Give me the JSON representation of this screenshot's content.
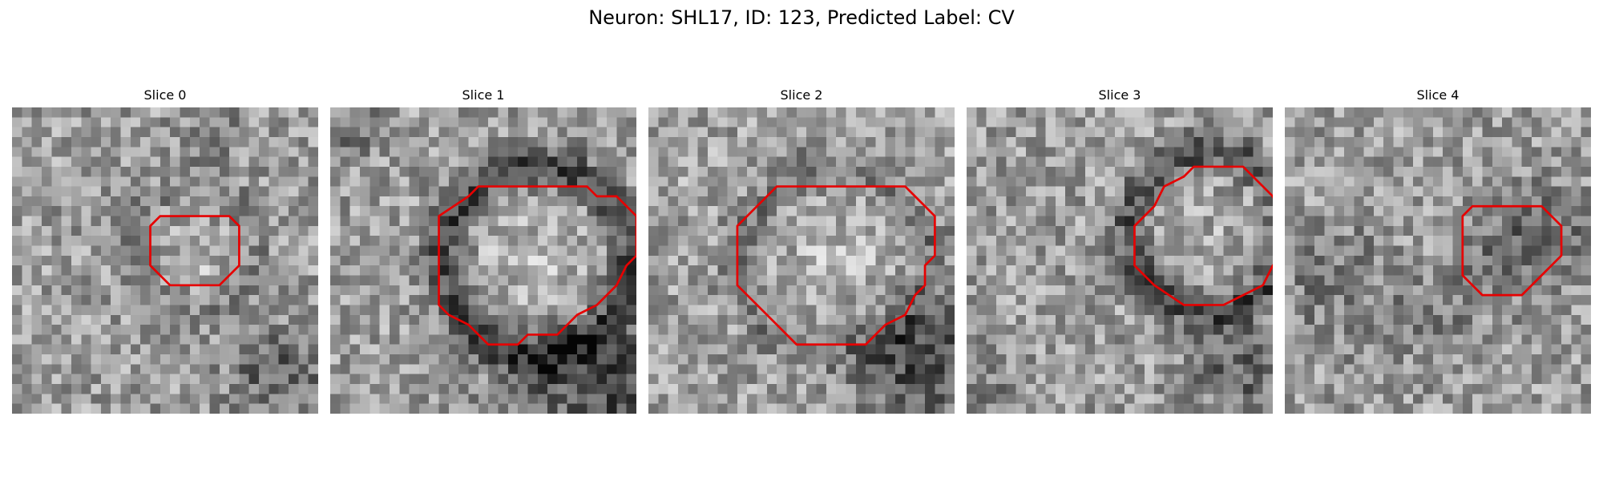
{
  "figure": {
    "title": "Neuron: SHL17, ID: 123, Predicted Label: CV"
  },
  "contour_color": "#e60000",
  "slices": [
    {
      "title": "Slice 0",
      "contour": [
        [
          22,
          11
        ],
        [
          23,
          12
        ],
        [
          23,
          16
        ],
        [
          21,
          18
        ],
        [
          16,
          18
        ],
        [
          14,
          16
        ],
        [
          14,
          12
        ],
        [
          15,
          11
        ]
      ]
    },
    {
      "title": "Slice 1",
      "contour": [
        [
          24,
          8
        ],
        [
          26,
          8
        ],
        [
          27,
          9
        ],
        [
          29,
          9
        ],
        [
          31,
          11
        ],
        [
          31,
          15
        ],
        [
          30,
          16
        ],
        [
          29,
          18
        ],
        [
          27,
          20
        ],
        [
          25,
          21
        ],
        [
          23,
          23
        ],
        [
          20,
          23
        ],
        [
          19,
          24
        ],
        [
          16,
          24
        ],
        [
          14,
          22
        ],
        [
          12,
          21
        ],
        [
          11,
          20
        ],
        [
          11,
          11
        ],
        [
          14,
          9
        ],
        [
          15,
          8
        ]
      ]
    },
    {
      "title": "Slice 2",
      "contour": [
        [
          24,
          8
        ],
        [
          26,
          8
        ],
        [
          28,
          10
        ],
        [
          29,
          11
        ],
        [
          29,
          15
        ],
        [
          28,
          16
        ],
        [
          28,
          18
        ],
        [
          27,
          19
        ],
        [
          26,
          21
        ],
        [
          24,
          22
        ],
        [
          22,
          24
        ],
        [
          15,
          24
        ],
        [
          13,
          22
        ],
        [
          11,
          20
        ],
        [
          9,
          18
        ],
        [
          9,
          12
        ],
        [
          11,
          10
        ],
        [
          13,
          8
        ]
      ]
    },
    {
      "title": "Slice 3",
      "contour": [
        [
          28,
          6
        ],
        [
          30,
          8
        ],
        [
          31,
          9
        ],
        [
          32,
          11
        ],
        [
          32,
          15
        ],
        [
          31,
          16
        ],
        [
          30,
          18
        ],
        [
          28,
          19
        ],
        [
          26,
          20
        ],
        [
          22,
          20
        ],
        [
          19,
          18
        ],
        [
          17,
          16
        ],
        [
          17,
          12
        ],
        [
          19,
          10
        ],
        [
          20,
          8
        ],
        [
          22,
          7
        ],
        [
          23,
          6
        ]
      ]
    },
    {
      "title": "Slice 4",
      "contour": [
        [
          26,
          10
        ],
        [
          27,
          11
        ],
        [
          28,
          12
        ],
        [
          28,
          15
        ],
        [
          27,
          16
        ],
        [
          26,
          17
        ],
        [
          24,
          19
        ],
        [
          20,
          19
        ],
        [
          19,
          18
        ],
        [
          18,
          17
        ],
        [
          18,
          11
        ],
        [
          19,
          10
        ]
      ]
    }
  ]
}
